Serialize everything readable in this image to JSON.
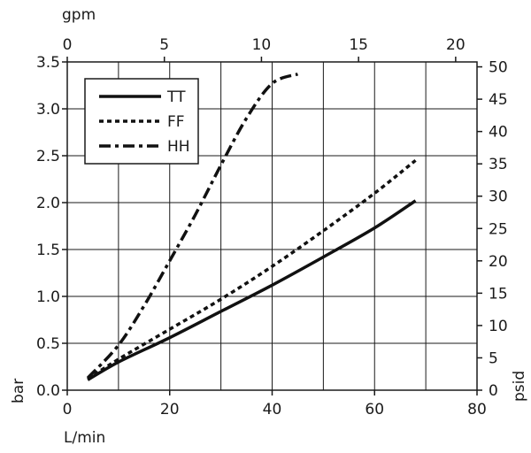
{
  "chart_data": {
    "type": "line",
    "xlabel": "L/min",
    "ylabel": "bar",
    "x2label": "gpm",
    "y2label": "psid",
    "xlim": [
      0,
      80
    ],
    "ylim": [
      0,
      3.5
    ],
    "x2lim": [
      0,
      21.1
    ],
    "y2lim": [
      0,
      50.76
    ],
    "x_ticks": [
      "0",
      "20",
      "40",
      "60",
      "80"
    ],
    "x_tick_values": [
      0,
      20,
      40,
      60,
      80
    ],
    "y_ticks": [
      "0.0",
      "0.5",
      "1.0",
      "1.5",
      "2.0",
      "2.5",
      "3.0",
      "3.5"
    ],
    "y_tick_values": [
      0,
      0.5,
      1.0,
      1.5,
      2.0,
      2.5,
      3.0,
      3.5
    ],
    "x2_ticks": [
      "0",
      "5",
      "10",
      "15",
      "20"
    ],
    "x2_tick_values": [
      0,
      5,
      10,
      15,
      20
    ],
    "y2_ticks": [
      "0",
      "5",
      "10",
      "15",
      "20",
      "25",
      "30",
      "35",
      "40",
      "45",
      "50"
    ],
    "y2_tick_values": [
      0,
      5,
      10,
      15,
      20,
      25,
      30,
      35,
      40,
      45,
      50
    ],
    "grid": true,
    "legend_position": "top-left",
    "series": [
      {
        "name": "TT",
        "style": "solid",
        "x": [
          4,
          10,
          20,
          30,
          40,
          50,
          60,
          68
        ],
        "y": [
          0.11,
          0.3,
          0.56,
          0.84,
          1.12,
          1.42,
          1.73,
          2.02
        ]
      },
      {
        "name": "FF",
        "style": "dotted",
        "x": [
          4,
          10,
          20,
          30,
          40,
          50,
          60,
          68
        ],
        "y": [
          0.12,
          0.33,
          0.65,
          0.97,
          1.32,
          1.7,
          2.1,
          2.45
        ]
      },
      {
        "name": "HH",
        "style": "dashdot",
        "x": [
          4,
          10,
          15,
          20,
          25,
          30,
          35,
          40,
          45
        ],
        "y": [
          0.13,
          0.48,
          0.9,
          1.38,
          1.87,
          2.4,
          2.9,
          3.27,
          3.37
        ]
      }
    ]
  }
}
